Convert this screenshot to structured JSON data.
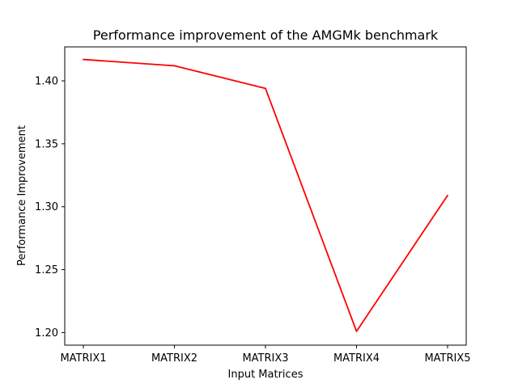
{
  "chart_data": {
    "type": "line",
    "title": "Performance improvement of the AMGMk benchmark",
    "xlabel": "Input Matrices",
    "ylabel": "Performance Improvement",
    "categories": [
      "MATRIX1",
      "MATRIX2",
      "MATRIX3",
      "MATRIX4",
      "MATRIX5"
    ],
    "series": [
      {
        "name": "AMGMk",
        "values": [
          1.417,
          1.412,
          1.394,
          1.201,
          1.309
        ],
        "color": "#ff0000"
      }
    ],
    "ylim": [
      1.19,
      1.427
    ],
    "yticks": [
      1.2,
      1.25,
      1.3,
      1.35,
      1.4
    ],
    "ytick_labels": [
      "1.20",
      "1.25",
      "1.30",
      "1.35",
      "1.40"
    ],
    "grid": false,
    "legend": "none"
  }
}
